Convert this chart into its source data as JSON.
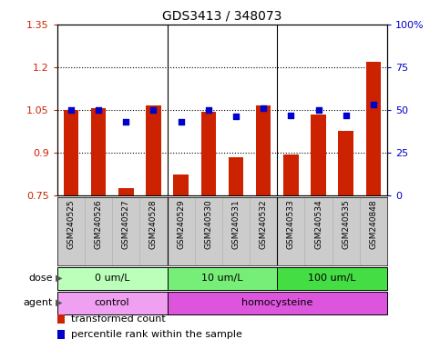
{
  "title": "GDS3413 / 348073",
  "samples": [
    "GSM240525",
    "GSM240526",
    "GSM240527",
    "GSM240528",
    "GSM240529",
    "GSM240530",
    "GSM240531",
    "GSM240532",
    "GSM240533",
    "GSM240534",
    "GSM240535",
    "GSM240848"
  ],
  "bar_values": [
    1.05,
    1.055,
    0.775,
    1.065,
    0.825,
    1.045,
    0.885,
    1.065,
    0.895,
    1.035,
    0.975,
    1.22
  ],
  "scatter_values": [
    50,
    50,
    43,
    50,
    43,
    50,
    46,
    51,
    47,
    50,
    47,
    53
  ],
  "bar_color": "#cc2200",
  "scatter_color": "#0000cc",
  "ylim": [
    0.75,
    1.35
  ],
  "y2lim": [
    0,
    100
  ],
  "yticks": [
    0.75,
    0.9,
    1.05,
    1.2,
    1.35
  ],
  "ytick_labels": [
    "0.75",
    "0.9",
    "1.05",
    "1.2",
    "1.35"
  ],
  "y2ticks": [
    0,
    25,
    50,
    75,
    100
  ],
  "y2tick_labels": [
    "0",
    "25",
    "50",
    "75",
    "100%"
  ],
  "hlines": [
    1.2,
    1.05,
    0.9
  ],
  "dose_groups": [
    {
      "label": "0 um/L",
      "start": 0,
      "end": 4,
      "color": "#bbffbb"
    },
    {
      "label": "10 um/L",
      "start": 4,
      "end": 8,
      "color": "#77ee77"
    },
    {
      "label": "100 um/L",
      "start": 8,
      "end": 12,
      "color": "#44dd44"
    }
  ],
  "agent_groups": [
    {
      "label": "control",
      "start": 0,
      "end": 4,
      "color": "#f0a0f0"
    },
    {
      "label": "homocysteine",
      "start": 4,
      "end": 12,
      "color": "#dd55dd"
    }
  ],
  "legend_items": [
    {
      "label": "transformed count",
      "color": "#cc2200"
    },
    {
      "label": "percentile rank within the sample",
      "color": "#0000cc"
    }
  ],
  "bar_width": 0.55,
  "sample_bg_color": "#cccccc",
  "sample_label_fontsize": 6.5,
  "group_label_fontsize": 8,
  "title_fontsize": 10,
  "axis_label_fontsize": 8,
  "legend_fontsize": 8,
  "group_sep": [
    3.5,
    7.5
  ]
}
